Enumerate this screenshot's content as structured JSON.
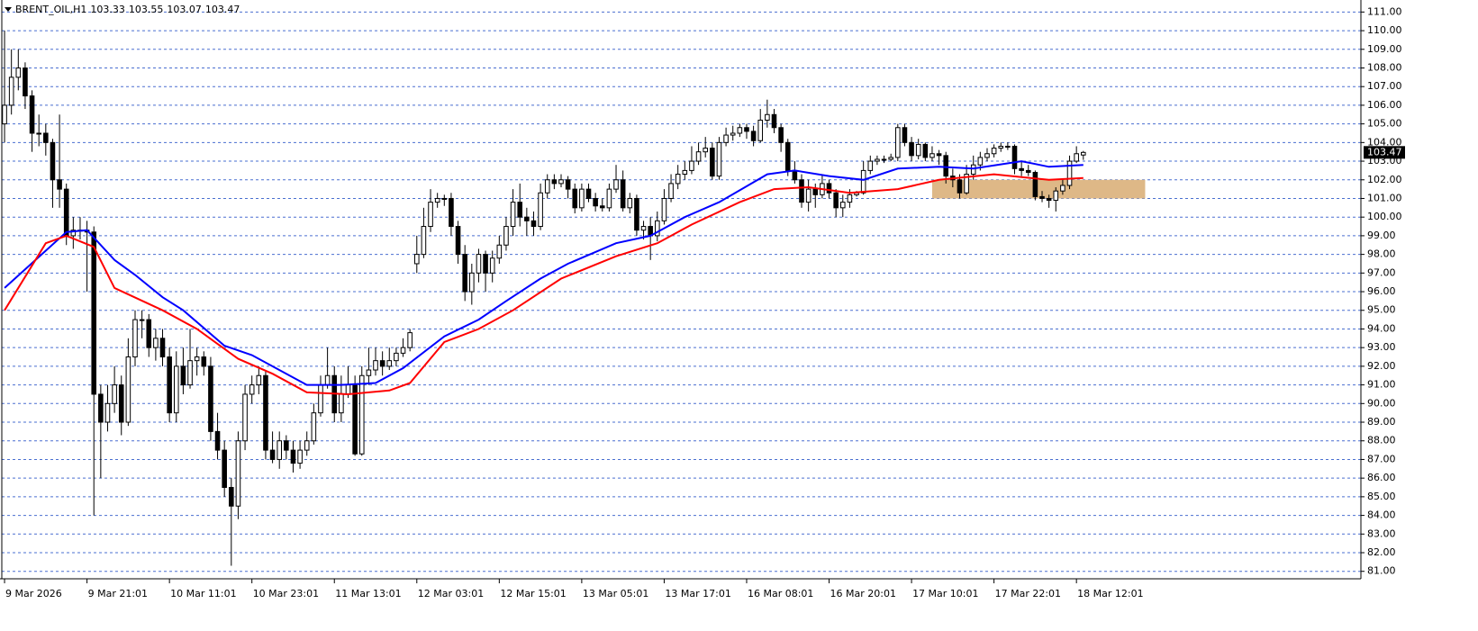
{
  "chart_data": {
    "type": "candlestick",
    "title": "BRENT_OIL,H1",
    "ylim": [
      80.6,
      111.5
    ],
    "xlim": [
      -0.4,
      197.4
    ],
    "grid": true,
    "bull_color": "#ffffff",
    "bear_color": "#000000",
    "candles": [
      [
        105,
        110,
        104,
        106
      ],
      [
        106,
        109,
        105.5,
        107.5
      ],
      [
        107.5,
        109,
        106.8,
        108
      ],
      [
        108,
        108.3,
        105.8,
        106.5
      ],
      [
        106.5,
        106.8,
        103.5,
        104.5
      ],
      [
        104.5,
        105.5,
        103.8,
        104.5
      ],
      [
        104.5,
        105,
        103.3,
        104
      ],
      [
        104,
        104.2,
        100.5,
        102
      ],
      [
        102,
        105.5,
        100.5,
        101.5
      ],
      [
        101.5,
        101.8,
        98.5,
        99
      ],
      [
        99,
        100,
        98.3,
        99.3
      ],
      [
        99.3,
        100,
        98.8,
        99.3
      ],
      [
        99.3,
        99.8,
        96,
        99.2
      ],
      [
        99.2,
        99.5,
        84,
        90.5
      ],
      [
        90.5,
        91,
        86,
        89
      ],
      [
        89,
        91,
        88.5,
        90
      ],
      [
        90,
        92,
        89.5,
        91
      ],
      [
        91,
        91.5,
        88.3,
        89
      ],
      [
        89,
        93.5,
        88.8,
        92.5
      ],
      [
        92.5,
        95,
        92,
        94.5
      ],
      [
        94.5,
        95,
        93.5,
        94.5
      ],
      [
        94.5,
        94.8,
        92.5,
        93
      ],
      [
        93,
        94,
        92.3,
        93.5
      ],
      [
        93.5,
        94,
        92,
        92.5
      ],
      [
        92.5,
        93,
        89,
        89.5
      ],
      [
        89.5,
        92.8,
        89,
        92
      ],
      [
        92,
        93,
        90.5,
        91
      ],
      [
        91,
        94,
        90.8,
        92.3
      ],
      [
        92.3,
        93,
        91.5,
        92.5
      ],
      [
        92.5,
        92.8,
        91.5,
        92
      ],
      [
        92,
        92.5,
        88,
        88.5
      ],
      [
        88.5,
        89.5,
        87,
        87.5
      ],
      [
        87.5,
        88,
        85,
        85.5
      ],
      [
        85.5,
        86,
        81.3,
        84.5
      ],
      [
        84.5,
        88.5,
        83.8,
        88
      ],
      [
        88,
        91,
        87.5,
        90.5
      ],
      [
        90.5,
        91.5,
        90,
        91
      ],
      [
        91,
        92,
        90.5,
        91.5
      ],
      [
        91.5,
        91.8,
        87,
        87.5
      ],
      [
        87.5,
        88.5,
        86.8,
        87
      ],
      [
        87,
        88.5,
        86.5,
        88
      ],
      [
        88,
        88.3,
        87,
        87.5
      ],
      [
        87.5,
        88,
        86.3,
        86.8
      ],
      [
        86.8,
        88,
        86.5,
        87.5
      ],
      [
        87.5,
        88.5,
        87.2,
        88
      ],
      [
        88,
        90,
        87.8,
        89.5
      ],
      [
        89.5,
        91.5,
        89.3,
        91
      ],
      [
        91,
        93,
        90.8,
        91.5
      ],
      [
        91.5,
        92,
        89,
        89.5
      ],
      [
        89.5,
        91.5,
        89,
        90.5
      ],
      [
        90.5,
        92,
        90.3,
        91
      ],
      [
        91,
        91.5,
        87.2,
        87.3
      ],
      [
        87.3,
        92,
        87.2,
        91.5
      ],
      [
        91.5,
        93,
        91,
        91.8
      ],
      [
        91.8,
        93,
        91.5,
        92.3
      ],
      [
        92.3,
        92.8,
        91.5,
        92
      ],
      [
        92,
        93,
        91.8,
        92.3
      ],
      [
        92.3,
        93,
        92,
        92.7
      ],
      [
        92.7,
        93.5,
        92.5,
        93
      ],
      [
        93,
        94,
        92.8,
        93.8
      ],
      [
        97.5,
        99,
        97,
        98
      ],
      [
        98,
        100.5,
        97.8,
        99.5
      ],
      [
        99.5,
        101.5,
        99.2,
        100.8
      ],
      [
        100.8,
        101.3,
        100.5,
        101
      ],
      [
        101,
        101.2,
        100.6,
        101
      ],
      [
        101,
        101.3,
        99,
        99.5
      ],
      [
        99.5,
        99.8,
        97.5,
        98
      ],
      [
        98,
        98.5,
        95.5,
        96
      ],
      [
        96,
        97.5,
        95.3,
        97
      ],
      [
        97,
        98.3,
        96.5,
        98
      ],
      [
        98,
        98.2,
        96,
        97
      ],
      [
        97,
        98.2,
        96.5,
        97.8
      ],
      [
        97.8,
        99,
        97.5,
        98.5
      ],
      [
        98.5,
        100,
        98.2,
        99.5
      ],
      [
        99.5,
        101.5,
        99,
        100.8
      ],
      [
        100.8,
        101.8,
        99.5,
        100
      ],
      [
        100,
        100.5,
        99,
        99.8
      ],
      [
        99.8,
        100.3,
        99,
        99.5
      ],
      [
        99.5,
        101.8,
        99.3,
        101.3
      ],
      [
        101.3,
        102.3,
        101,
        102
      ],
      [
        102,
        102.3,
        101.5,
        101.8
      ],
      [
        101.8,
        102.3,
        101.6,
        102
      ],
      [
        102,
        102.2,
        101,
        101.5
      ],
      [
        101.5,
        101.8,
        100.2,
        100.5
      ],
      [
        100.5,
        101.8,
        100.3,
        101.5
      ],
      [
        101.5,
        101.8,
        100.8,
        101
      ],
      [
        101,
        101.3,
        100.3,
        100.6
      ],
      [
        100.6,
        101,
        100.3,
        100.5
      ],
      [
        100.5,
        101.8,
        100.3,
        101.5
      ],
      [
        101.5,
        102.8,
        101.3,
        102
      ],
      [
        102,
        102.5,
        100.3,
        100.5
      ],
      [
        100.5,
        101.3,
        100.2,
        101
      ],
      [
        101,
        101.2,
        99,
        99.3
      ],
      [
        99.3,
        99.8,
        98.8,
        99.5
      ],
      [
        99.5,
        100,
        97.7,
        99
      ],
      [
        99,
        100.3,
        98.7,
        99.8
      ],
      [
        99.8,
        101.5,
        99.6,
        101
      ],
      [
        101,
        102.3,
        100.8,
        101.8
      ],
      [
        101.8,
        102.8,
        101.5,
        102.3
      ],
      [
        102.3,
        103,
        102,
        102.5
      ],
      [
        102.5,
        103.8,
        102.3,
        103
      ],
      [
        103,
        104,
        102.8,
        103.5
      ],
      [
        103.5,
        104.3,
        103.2,
        103.7
      ],
      [
        103.7,
        104,
        102,
        102.2
      ],
      [
        102.2,
        104.3,
        102,
        104
      ],
      [
        104,
        104.8,
        103.8,
        104.4
      ],
      [
        104.4,
        104.9,
        104.1,
        104.5
      ],
      [
        104.5,
        105,
        104.3,
        104.8
      ],
      [
        104.8,
        105,
        104.2,
        104.6
      ],
      [
        104.6,
        104.9,
        103.8,
        104.1
      ],
      [
        104.1,
        105.8,
        104,
        105.2
      ],
      [
        105.2,
        106.3,
        104.8,
        105.5
      ],
      [
        105.5,
        105.8,
        104.5,
        104.8
      ],
      [
        104.8,
        105,
        103.5,
        104
      ],
      [
        104,
        104.2,
        102.2,
        102.5
      ],
      [
        102.5,
        103,
        101.8,
        102
      ],
      [
        102,
        102.3,
        100.5,
        100.8
      ],
      [
        100.8,
        102,
        100.3,
        101.5
      ],
      [
        101.5,
        101.8,
        100.5,
        101.2
      ],
      [
        101.2,
        102.3,
        101,
        101.8
      ],
      [
        101.8,
        102,
        101,
        101.3
      ],
      [
        101.3,
        101.5,
        100,
        100.5
      ],
      [
        100.5,
        101.2,
        100,
        100.8
      ],
      [
        100.8,
        101.5,
        100.5,
        101.2
      ],
      [
        101.2,
        101.4,
        101.1,
        101.3
      ],
      [
        101.3,
        103,
        101.2,
        102.5
      ],
      [
        102.5,
        103.3,
        102.3,
        103
      ],
      [
        103,
        103.3,
        102.8,
        103.1
      ],
      [
        103.1,
        103.3,
        102.9,
        103.1
      ],
      [
        103.1,
        103.4,
        103,
        103.2
      ],
      [
        103.2,
        105,
        103,
        104.8
      ],
      [
        104.8,
        105,
        103.8,
        104
      ],
      [
        104,
        104.3,
        103,
        103.3
      ],
      [
        103.3,
        104.2,
        103.1,
        103.9
      ],
      [
        103.9,
        104,
        103,
        103.2
      ],
      [
        103.2,
        103.8,
        103,
        103.4
      ],
      [
        103.4,
        103.6,
        102.8,
        103.3
      ],
      [
        103.3,
        103.5,
        101.8,
        102.2
      ],
      [
        102.2,
        102.6,
        101.6,
        102
      ],
      [
        102,
        102.3,
        101,
        101.3
      ],
      [
        101.3,
        102.8,
        101.2,
        102.3
      ],
      [
        102.3,
        103.3,
        102,
        102.8
      ],
      [
        102.8,
        103.5,
        102.5,
        103.2
      ],
      [
        103.2,
        103.7,
        103,
        103.4
      ],
      [
        103.4,
        103.9,
        103.2,
        103.7
      ],
      [
        103.7,
        104,
        103.5,
        103.8
      ],
      [
        103.8,
        104,
        103.6,
        103.8
      ],
      [
        103.8,
        103.9,
        102.3,
        102.6
      ],
      [
        102.6,
        103,
        102.2,
        102.5
      ],
      [
        102.5,
        102.8,
        102.2,
        102.4
      ],
      [
        102.4,
        102.5,
        100.9,
        101.1
      ],
      [
        101.1,
        101.4,
        100.8,
        101
      ],
      [
        101,
        101.2,
        100.5,
        100.9
      ],
      [
        100.9,
        101.6,
        100.3,
        101.4
      ],
      [
        101.4,
        102,
        101.2,
        101.7
      ],
      [
        101.7,
        103.3,
        101.5,
        103
      ],
      [
        103,
        103.8,
        102.9,
        103.4
      ],
      [
        103.33,
        103.55,
        103.07,
        103.47
      ]
    ],
    "series": [
      {
        "color": "#0000ff",
        "x": [
          0,
          6,
          9,
          12,
          16,
          19,
          23,
          26,
          32,
          36,
          44,
          49,
          54,
          58,
          64,
          69,
          73,
          78,
          82,
          89,
          94,
          99,
          104,
          111,
          115,
          120,
          125,
          130,
          136,
          141,
          148,
          152,
          157
        ],
        "values": [
          96.2,
          98.2,
          99.2,
          99.3,
          97.7,
          96.9,
          95.7,
          95,
          93.1,
          92.6,
          91,
          91,
          91.1,
          91.9,
          93.6,
          94.5,
          95.5,
          96.7,
          97.5,
          98.6,
          99,
          100,
          100.8,
          102.3,
          102.5,
          102.2,
          102,
          102.6,
          102.7,
          102.6,
          103,
          102.7,
          102.8
        ]
      },
      {
        "color": "#ff0000",
        "x": [
          0,
          6,
          9,
          13,
          16,
          23,
          28,
          34,
          39,
          44,
          50,
          56,
          59,
          64,
          69,
          74,
          81,
          89,
          95,
          100,
          107,
          112,
          117,
          123,
          130,
          136,
          144,
          152,
          157
        ],
        "values": [
          95,
          98.6,
          99,
          98.4,
          96.2,
          95,
          94,
          92.4,
          91.6,
          90.6,
          90.5,
          90.7,
          91.1,
          93.3,
          94,
          95,
          96.7,
          97.9,
          98.6,
          99.6,
          100.8,
          101.5,
          101.6,
          101.3,
          101.5,
          102,
          102.3,
          102,
          102.1
        ]
      }
    ],
    "zone": {
      "x": [
        135,
        166
      ],
      "y": [
        101,
        102
      ],
      "color": "#deb887"
    },
    "yticks": [
      {
        "value": 81,
        "label": "81.00"
      },
      {
        "value": 82,
        "label": "82.00"
      },
      {
        "value": 83,
        "label": "83.00"
      },
      {
        "value": 84,
        "label": "84.00"
      },
      {
        "value": 85,
        "label": "85.00"
      },
      {
        "value": 86,
        "label": "86.00"
      },
      {
        "value": 87,
        "label": "87.00"
      },
      {
        "value": 88,
        "label": "88.00"
      },
      {
        "value": 89,
        "label": "89.00"
      },
      {
        "value": 90,
        "label": "90.00"
      },
      {
        "value": 91,
        "label": "91.00"
      },
      {
        "value": 92,
        "label": "92.00"
      },
      {
        "value": 93,
        "label": "93.00"
      },
      {
        "value": 94,
        "label": "94.00"
      },
      {
        "value": 95,
        "label": "95.00"
      },
      {
        "value": 96,
        "label": "96.00"
      },
      {
        "value": 97,
        "label": "97.00"
      },
      {
        "value": 98,
        "label": "98.00"
      },
      {
        "value": 99,
        "label": "99.00"
      },
      {
        "value": 100,
        "label": "100.00"
      },
      {
        "value": 101,
        "label": "101.00"
      },
      {
        "value": 102,
        "label": "102.00"
      },
      {
        "value": 103,
        "label": "103.00"
      },
      {
        "value": 104,
        "label": "104.00"
      },
      {
        "value": 105,
        "label": "105.00"
      },
      {
        "value": 106,
        "label": "106.00"
      },
      {
        "value": 107,
        "label": "107.00"
      },
      {
        "value": 108,
        "label": "108.00"
      },
      {
        "value": 109,
        "label": "109.00"
      },
      {
        "value": 110,
        "label": "110.00"
      },
      {
        "value": 111,
        "label": "111.00"
      }
    ],
    "xticks": [
      {
        "value": 0,
        "label": "9 Mar 2026"
      },
      {
        "value": 12,
        "label": "9 Mar 21:01"
      },
      {
        "value": 24,
        "label": "10 Mar 11:01"
      },
      {
        "value": 36,
        "label": "10 Mar 23:01"
      },
      {
        "value": 48,
        "label": "11 Mar 13:01"
      },
      {
        "value": 60,
        "label": "12 Mar 03:01"
      },
      {
        "value": 72,
        "label": "12 Mar 15:01"
      },
      {
        "value": 84,
        "label": "13 Mar 05:01"
      },
      {
        "value": 96,
        "label": "13 Mar 17:01"
      },
      {
        "value": 108,
        "label": "16 Mar 08:01"
      },
      {
        "value": 120,
        "label": "16 Mar 20:01"
      },
      {
        "value": 132,
        "label": "17 Mar 10:01"
      },
      {
        "value": 144,
        "label": "17 Mar 22:01"
      },
      {
        "value": 156,
        "label": "18 Mar 12:01"
      }
    ]
  }
}
